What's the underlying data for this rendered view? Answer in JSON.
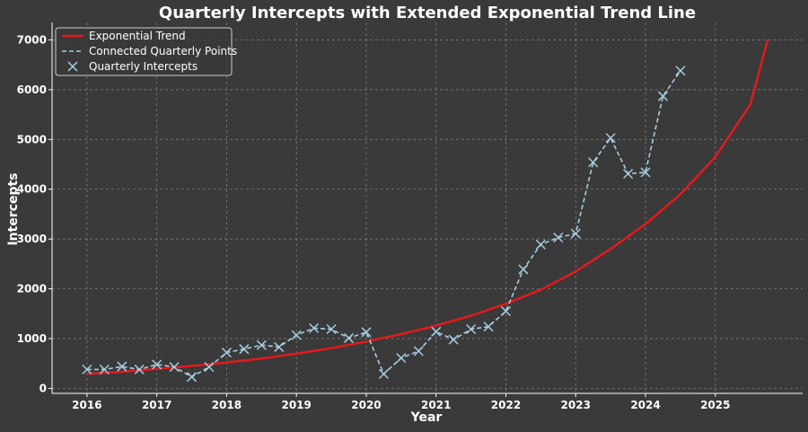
{
  "chart_data": {
    "type": "line",
    "title": "Quarterly Intercepts with Extended Exponential Trend Line",
    "xlabel": "Year",
    "ylabel": "Intercepts",
    "xlim": [
      2015.5,
      2026.25
    ],
    "ylim": [
      -100,
      7350
    ],
    "x_ticks": [
      2016,
      2017,
      2018,
      2019,
      2020,
      2021,
      2022,
      2023,
      2024,
      2025
    ],
    "y_ticks": [
      0,
      1000,
      2000,
      3000,
      4000,
      5000,
      6000,
      7000
    ],
    "grid": true,
    "legend_position": "top-left",
    "colors": {
      "background": "#3a3a3a",
      "trend": "#e31a1c",
      "points": "#a6cee3",
      "text": "#ffffff"
    },
    "series": [
      {
        "name": "Exponential Trend",
        "style": "solid",
        "x": [
          2016.0,
          2016.5,
          2017.0,
          2017.5,
          2018.0,
          2018.5,
          2019.0,
          2019.5,
          2020.0,
          2020.5,
          2021.0,
          2021.5,
          2022.0,
          2022.5,
          2023.0,
          2023.5,
          2024.0,
          2024.5,
          2025.0,
          2025.5,
          2025.75
        ],
        "y": [
          290,
          335,
          390,
          450,
          520,
          600,
          700,
          810,
          940,
          1090,
          1260,
          1460,
          1700,
          1980,
          2350,
          2800,
          3300,
          3900,
          4650,
          5700,
          7000
        ]
      },
      {
        "name": "Connected Quarterly Points",
        "style": "dashed",
        "x": [
          2016.0,
          2016.25,
          2016.5,
          2016.75,
          2017.0,
          2017.25,
          2017.5,
          2017.75,
          2018.0,
          2018.25,
          2018.5,
          2018.75,
          2019.0,
          2019.25,
          2019.5,
          2019.75,
          2020.0,
          2020.25,
          2020.5,
          2020.75,
          2021.0,
          2021.25,
          2021.5,
          2021.75,
          2022.0,
          2022.25,
          2022.5,
          2022.75,
          2023.0,
          2023.25,
          2023.5,
          2023.75,
          2024.0,
          2024.25,
          2024.5
        ],
        "y": [
          380,
          380,
          440,
          380,
          480,
          430,
          230,
          430,
          720,
          790,
          870,
          830,
          1070,
          1210,
          1190,
          1010,
          1130,
          290,
          610,
          750,
          1140,
          980,
          1190,
          1240,
          1550,
          2390,
          2890,
          3030,
          3110,
          4540,
          5030,
          4310,
          4340,
          5870,
          6380
        ]
      },
      {
        "name": "Quarterly Intercepts",
        "style": "markers",
        "marker": "x"
      }
    ]
  }
}
